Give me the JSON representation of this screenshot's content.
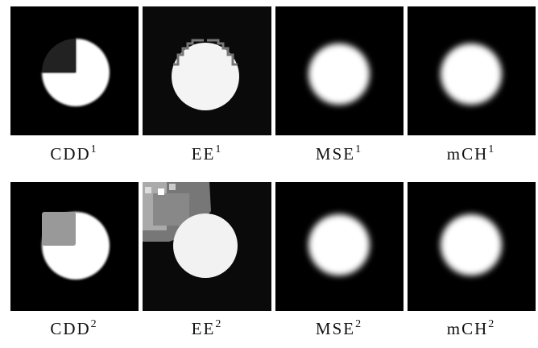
{
  "figure": {
    "rows": [
      [
        {
          "label": "CDD",
          "sup": "1"
        },
        {
          "label": "EE",
          "sup": "1"
        },
        {
          "label": "MSE",
          "sup": "1"
        },
        {
          "label": "mCH",
          "sup": "1"
        }
      ],
      [
        {
          "label": "CDD",
          "sup": "2"
        },
        {
          "label": "EE",
          "sup": "2"
        },
        {
          "label": "MSE",
          "sup": "2"
        },
        {
          "label": "mCH",
          "sup": "2"
        }
      ]
    ]
  }
}
